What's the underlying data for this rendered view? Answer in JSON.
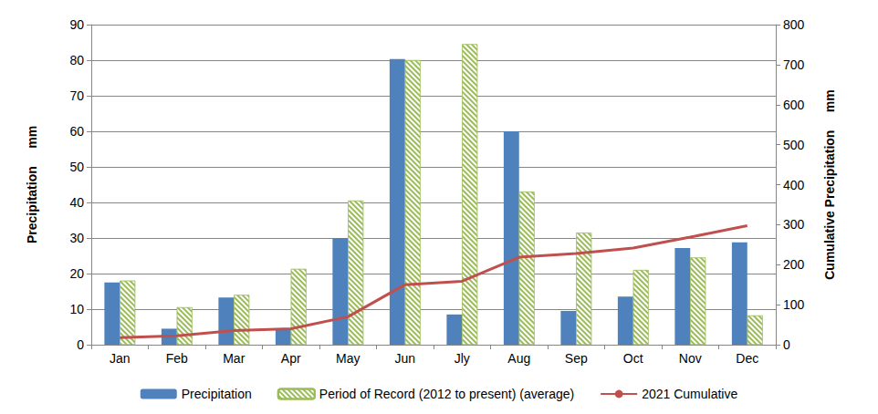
{
  "chart_data": {
    "type": "bar",
    "categories": [
      "Jan",
      "Feb",
      "Mar",
      "Apr",
      "May",
      "Jun",
      "Jly",
      "Aug",
      "Sep",
      "Oct",
      "Nov",
      "Dec"
    ],
    "ylabel": "Precipitation     mm",
    "y2label": "Cumulative Precipitation     mm",
    "ylim": [
      0,
      90
    ],
    "yticks": [
      0,
      10,
      20,
      30,
      40,
      50,
      60,
      70,
      80,
      90
    ],
    "y2lim": [
      0,
      800
    ],
    "y2ticks": [
      0,
      100,
      200,
      300,
      400,
      500,
      600,
      700,
      800
    ],
    "grid": true,
    "legend": "bottom",
    "series": [
      {
        "name": "Precipitation",
        "type": "bar",
        "color": "#4F81BD",
        "values": [
          17.5,
          4.5,
          13.3,
          4.5,
          30,
          80.3,
          8.5,
          60,
          9.5,
          13.5,
          27.2,
          28.8
        ]
      },
      {
        "name": "Period of Record (2012 to present) (average)",
        "type": "bar",
        "color": "#9BBB59",
        "line_style": "hatched",
        "values": [
          18,
          10.5,
          14,
          21.3,
          40.5,
          80,
          84.5,
          43,
          31.5,
          21,
          24.5,
          8.2
        ]
      },
      {
        "name": "2021 Cumulative",
        "type": "line",
        "color": "#C0504D",
        "axis": "y2",
        "values": [
          17.5,
          22,
          35.3,
          39.8,
          69.8,
          150.1,
          158.6,
          218.6,
          228.1,
          241.6,
          268.8,
          297.6
        ]
      }
    ]
  }
}
